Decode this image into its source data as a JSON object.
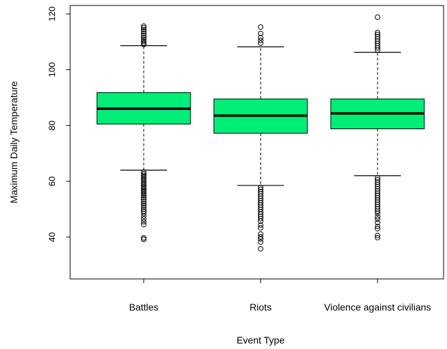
{
  "chart_data": {
    "type": "box",
    "xlabel": "Event Type",
    "ylabel": "Maximum Daily Temperature",
    "ylim": [
      25,
      123
    ],
    "yticks": [
      40,
      60,
      80,
      100,
      120
    ],
    "grid": false,
    "box_color": "#00EE76",
    "categories": [
      "Battles",
      "Riots",
      "Violence against civilians"
    ],
    "boxes": [
      {
        "category": "Battles",
        "whisker_low": 64,
        "q1": 80.5,
        "median": 86,
        "q3": 91.8,
        "whisker_high": 108.6,
        "outliers_high": [
          109,
          109.6,
          110.2,
          110.8,
          111.5,
          112.2,
          112.9,
          113.6,
          114.3,
          115,
          115.6
        ],
        "outliers_low": [
          39.2,
          39.7,
          44.5,
          45.5,
          46.5,
          47.5,
          48.5,
          49.3,
          50,
          50.7,
          51.4,
          52.1,
          52.8,
          53.5,
          54.2,
          54.9,
          55.5,
          56.1,
          56.7,
          57.3,
          57.9,
          58.5,
          59.1,
          59.7,
          60.3,
          60.9,
          61.5,
          62.1,
          62.7,
          63.3
        ]
      },
      {
        "category": "Riots",
        "whisker_low": 58.5,
        "q1": 77.2,
        "median": 83.5,
        "q3": 89.5,
        "whisker_high": 108.2,
        "outliers_high": [
          109.5,
          110.5,
          111.5,
          113,
          115.3
        ],
        "outliers_low": [
          35.8,
          38.2,
          39.3,
          40.1,
          41.1,
          43.3,
          44.3,
          45.7,
          46.6,
          47.4,
          48.2,
          49,
          49.9,
          50.7,
          51.5,
          52.3,
          53.1,
          53.9,
          54.7,
          55.5,
          56.3,
          57.1,
          57.8
        ]
      },
      {
        "category": "Violence against civilians",
        "whisker_low": 62,
        "q1": 78.8,
        "median": 84.3,
        "q3": 89.5,
        "whisker_high": 106.2,
        "outliers_high": [
          107,
          107.8,
          108.6,
          109.4,
          110.2,
          111,
          111.8,
          112.6,
          113.3,
          118.8
        ],
        "outliers_low": [
          39.8,
          40.6,
          43,
          43.8,
          45.2,
          46.4,
          47.3,
          48.5,
          49.3,
          50.1,
          50.9,
          51.7,
          52.5,
          53.3,
          54.1,
          54.9,
          55.7,
          56.5,
          57.3,
          58.1,
          58.9,
          59.7,
          60.5,
          61.2
        ]
      }
    ]
  }
}
